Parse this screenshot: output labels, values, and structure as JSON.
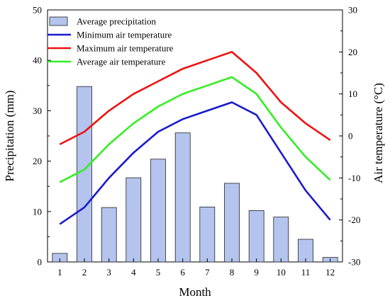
{
  "chart_data": {
    "type": "bar",
    "categories": [
      "1",
      "2",
      "3",
      "4",
      "5",
      "6",
      "7",
      "8",
      "9",
      "10",
      "11",
      "12"
    ],
    "xlabel": "Month",
    "ylabel_left": "Precipitation (mm)",
    "ylabel_right": "Air temperature (°C)",
    "ylim_left": [
      0,
      50
    ],
    "yticks_left": [
      "0",
      "10",
      "20",
      "30",
      "40",
      "50"
    ],
    "ylim_right": [
      -30,
      30
    ],
    "yticks_right": [
      "-30",
      "-20",
      "-10",
      "0",
      "10",
      "20",
      "30"
    ],
    "grid": false,
    "legend_position": "top-left",
    "bars": {
      "name": "Average precipitation",
      "axis": "left",
      "color": "#b4c4ee",
      "values": [
        1.7,
        34.8,
        10.8,
        16.7,
        20.4,
        25.6,
        10.9,
        15.6,
        10.2,
        8.9,
        4.5,
        0.9
      ]
    },
    "series": [
      {
        "name": "Minimum air temperature",
        "axis": "right",
        "color": "#1a1acc",
        "values": [
          -21,
          -17,
          -10,
          -4,
          1,
          4,
          6,
          8,
          5,
          -4,
          -13,
          -20
        ]
      },
      {
        "name": "Maximum air temperature",
        "axis": "right",
        "color": "#ee1111",
        "values": [
          -2,
          1,
          6,
          10,
          13,
          16,
          18,
          20,
          15,
          8,
          3,
          -1
        ]
      },
      {
        "name": "Average air temperature",
        "axis": "right",
        "color": "#33ee22",
        "values": [
          -11,
          -8,
          -2,
          3,
          7,
          10,
          12,
          14,
          10,
          2,
          -5,
          -10.5
        ]
      }
    ]
  }
}
